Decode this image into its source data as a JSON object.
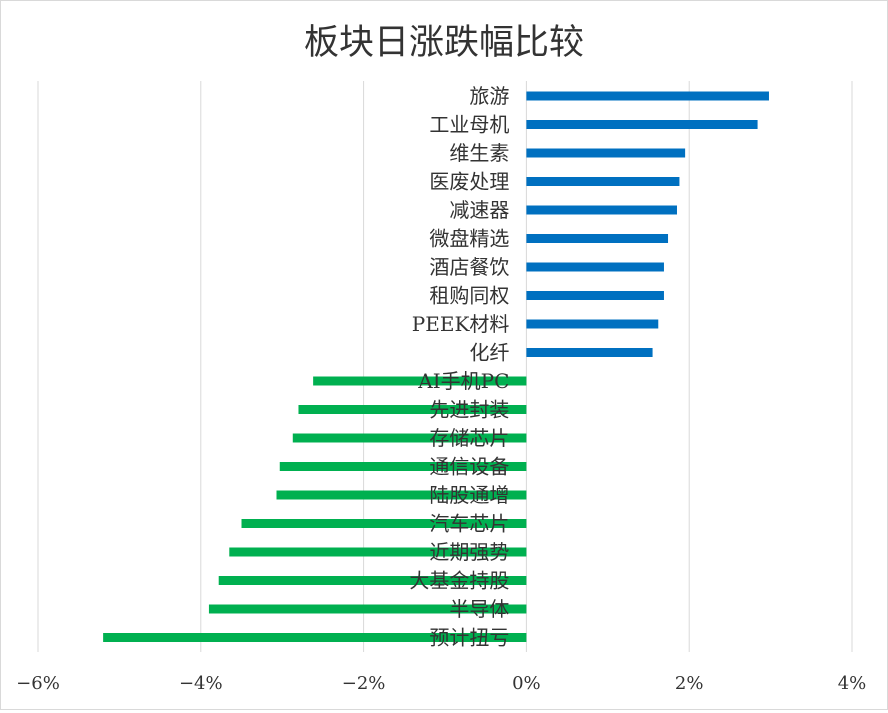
{
  "chart_data": {
    "type": "bar",
    "orientation": "horizontal",
    "title": "板块日涨跌幅比较",
    "xlabel": "",
    "ylabel": "",
    "xlim": [
      -6,
      4
    ],
    "x_ticks": [
      -6,
      -4,
      -2,
      0,
      2,
      4
    ],
    "x_tick_labels": [
      "−6%",
      "−4%",
      "−2%",
      "0%",
      "2%",
      "4%"
    ],
    "grid": "vertical",
    "legend": "none",
    "colors": {
      "positive": "#0070c0",
      "negative": "#00b050",
      "grid": "#d9d9d9",
      "title": "#222222"
    },
    "categories": [
      "旅游",
      "工业母机",
      "维生素",
      "医废处理",
      "减速器",
      "微盘精选",
      "酒店餐饮",
      "租购同权",
      "PEEK材料",
      "化纤",
      "AI手机PC",
      "先进封装",
      "存储芯片",
      "通信设备",
      "陆股通增",
      "汽车芯片",
      "近期强势",
      "大基金持股",
      "半导体",
      "预计扭亏"
    ],
    "values": [
      2.98,
      2.84,
      1.95,
      1.88,
      1.85,
      1.74,
      1.69,
      1.69,
      1.62,
      1.55,
      -2.62,
      -2.8,
      -2.87,
      -3.03,
      -3.07,
      -3.5,
      -3.65,
      -3.78,
      -3.9,
      -5.2
    ]
  }
}
